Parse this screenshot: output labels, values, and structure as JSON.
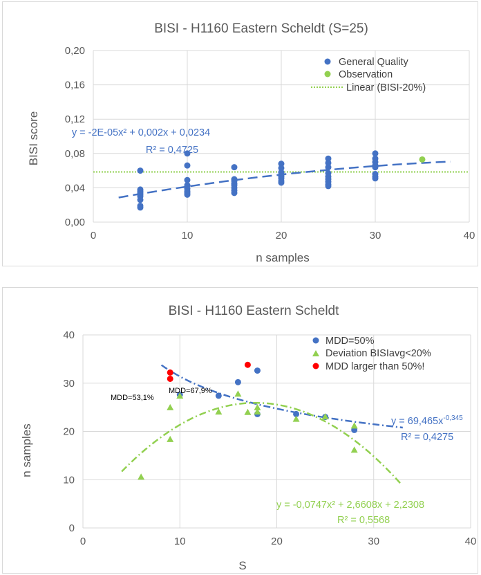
{
  "colors": {
    "blue": "#4472c4",
    "green": "#92d050",
    "red": "#ff0000",
    "grid": "#d9d9d9",
    "text": "#595959"
  },
  "chart_data": [
    {
      "type": "scatter",
      "title": "BISI - H1160 Eastern Scheldt (S=25)",
      "xlabel": "n samples",
      "ylabel": "BISI score",
      "xlim": [
        0,
        40
      ],
      "ylim": [
        0,
        0.2
      ],
      "xticks": [
        "0",
        "10",
        "20",
        "30",
        "40"
      ],
      "yticks": [
        "0,00",
        "0,04",
        "0,08",
        "0,12",
        "0,16",
        "0,20"
      ],
      "grid": "vertical and horizontal",
      "legend_position": "top-right",
      "series": [
        {
          "name": "General Quality",
          "marker": "circle",
          "color": "#4472c4",
          "points": [
            [
              5,
              0.06
            ],
            [
              5,
              0.038
            ],
            [
              5,
              0.036
            ],
            [
              5,
              0.034
            ],
            [
              5,
              0.032
            ],
            [
              5,
              0.03
            ],
            [
              5,
              0.026
            ],
            [
              5,
              0.019
            ],
            [
              5,
              0.017
            ],
            [
              10,
              0.08
            ],
            [
              10,
              0.066
            ],
            [
              10,
              0.049
            ],
            [
              10,
              0.043
            ],
            [
              10,
              0.039
            ],
            [
              10,
              0.036
            ],
            [
              10,
              0.034
            ],
            [
              10,
              0.032
            ],
            [
              15,
              0.064
            ],
            [
              15,
              0.05
            ],
            [
              15,
              0.048
            ],
            [
              15,
              0.045
            ],
            [
              15,
              0.043
            ],
            [
              15,
              0.04
            ],
            [
              15,
              0.037
            ],
            [
              15,
              0.034
            ],
            [
              20,
              0.068
            ],
            [
              20,
              0.063
            ],
            [
              20,
              0.058
            ],
            [
              20,
              0.055
            ],
            [
              20,
              0.053
            ],
            [
              20,
              0.051
            ],
            [
              20,
              0.048
            ],
            [
              20,
              0.046
            ],
            [
              25,
              0.074
            ],
            [
              25,
              0.069
            ],
            [
              25,
              0.064
            ],
            [
              25,
              0.057
            ],
            [
              25,
              0.053
            ],
            [
              25,
              0.05
            ],
            [
              25,
              0.047
            ],
            [
              25,
              0.044
            ],
            [
              25,
              0.042
            ],
            [
              30,
              0.08
            ],
            [
              30,
              0.074
            ],
            [
              30,
              0.07
            ],
            [
              30,
              0.066
            ],
            [
              30,
              0.064
            ],
            [
              30,
              0.056
            ],
            [
              30,
              0.053
            ],
            [
              30,
              0.051
            ]
          ]
        },
        {
          "name": "Observation",
          "marker": "circle",
          "color": "#92d050",
          "points": [
            [
              35,
              0.073
            ]
          ]
        },
        {
          "name": "Linear (BISI-20%)",
          "style": "dotted",
          "color": "#92d050",
          "line": [
            [
              0,
              0.0585
            ],
            [
              40,
              0.0585
            ]
          ]
        }
      ],
      "trendlines": [
        {
          "style": "dashed",
          "color": "#4472c4",
          "equation": "y = -2E-05x² + 0,002x + 0,0234",
          "r2": "R² = 0,4725",
          "coef": [
            -2e-05,
            0.002,
            0.0234
          ],
          "x_range": [
            2.7,
            38
          ]
        }
      ]
    },
    {
      "type": "scatter",
      "title": "BISI - H1160 Eastern Scheldt",
      "xlabel": "S",
      "ylabel": "n samples",
      "xlim": [
        0,
        40
      ],
      "ylim": [
        0,
        40
      ],
      "xticks": [
        "0",
        "10",
        "20",
        "30",
        "40"
      ],
      "yticks": [
        "0",
        "10",
        "20",
        "30",
        "40"
      ],
      "grid": "vertical and horizontal",
      "legend_position": "top-right",
      "series": [
        {
          "name": "MDD=50%",
          "marker": "circle",
          "color": "#4472c4",
          "points": [
            [
              10,
              27.6
            ],
            [
              14,
              27.4
            ],
            [
              16,
              30.2
            ],
            [
              18,
              32.6
            ],
            [
              18,
              23.6
            ],
            [
              22,
              23.6
            ],
            [
              25,
              23.0
            ],
            [
              28,
              20.3
            ]
          ]
        },
        {
          "name": "Deviation BISIavg<20%",
          "marker": "triangle",
          "color": "#92d050",
          "points": [
            [
              6,
              10.5
            ],
            [
              9,
              24.9
            ],
            [
              9,
              18.3
            ],
            [
              10,
              27.3
            ],
            [
              14,
              24.0
            ],
            [
              16,
              27.7
            ],
            [
              17,
              23.9
            ],
            [
              18,
              24.9
            ],
            [
              18,
              24.0
            ],
            [
              22,
              22.5
            ],
            [
              25,
              23.0
            ],
            [
              28,
              21.1
            ],
            [
              28,
              16.1
            ]
          ]
        },
        {
          "name": "MDD larger than 50%!",
          "marker": "circle",
          "color": "#ff0000",
          "points": [
            [
              9,
              32.2
            ],
            [
              9,
              30.9
            ],
            [
              17,
              33.8
            ]
          ]
        }
      ],
      "annotations": [
        {
          "text": "MDD=67,9%",
          "x": 17,
          "y": 33.8
        },
        {
          "text": "MDD=53,1%",
          "x": 9,
          "y": 30.9
        }
      ],
      "trendlines": [
        {
          "style": "dash-dot",
          "color": "#4472c4",
          "type": "power",
          "equation": "y = 69,465x",
          "exponent": "-0,345",
          "r2": "R² = 0,4275",
          "coef": [
            69.465,
            -0.345
          ],
          "x_range": [
            8.1,
            33
          ]
        },
        {
          "style": "dash-dot",
          "color": "#92d050",
          "type": "polynomial",
          "equation": "y = -0,0747x² + 2,6608x + 2,2308",
          "r2": "R² = 0,5568",
          "coef": [
            -0.0747,
            2.6608,
            2.2308
          ],
          "x_range": [
            4,
            32.8
          ]
        }
      ]
    }
  ]
}
